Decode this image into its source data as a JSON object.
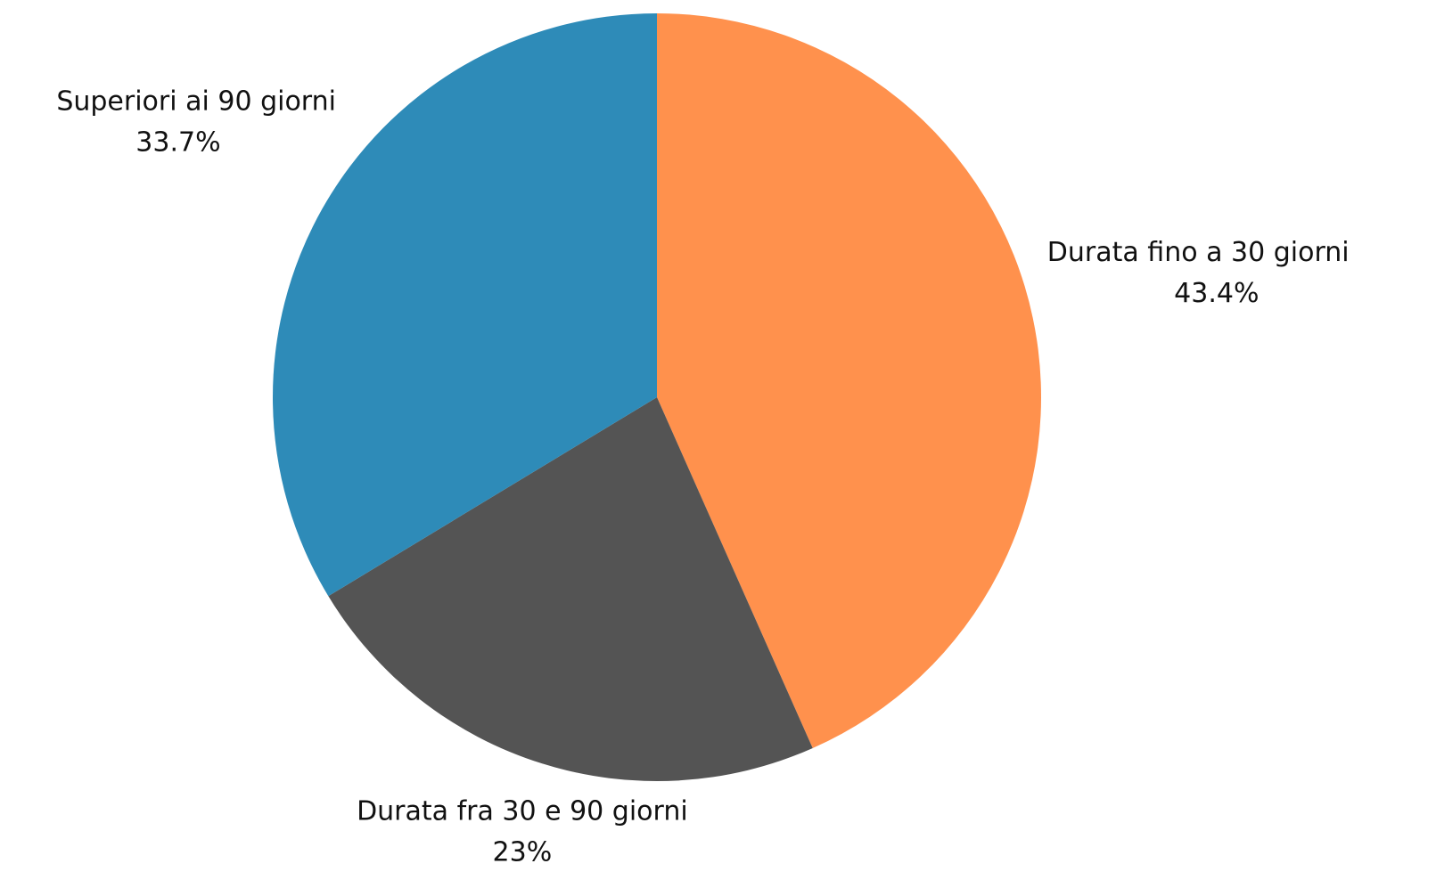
{
  "chart_data": {
    "type": "pie",
    "categories": [
      "Durata fino a 30 giorni",
      "Durata fra 30 e 90 giorni",
      "Superiori ai 90 giorni"
    ],
    "values": [
      43.4,
      23,
      33.7
    ],
    "value_labels": [
      "43.4%",
      "23%",
      "33.7%"
    ],
    "colors": [
      "#ff914d",
      "#545454",
      "#2e8bb8"
    ]
  }
}
